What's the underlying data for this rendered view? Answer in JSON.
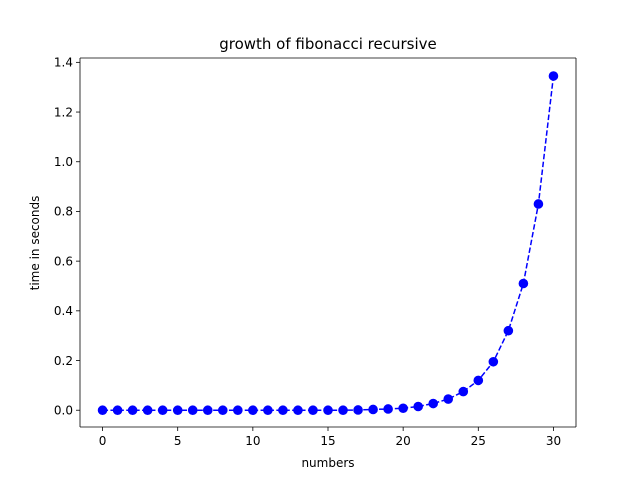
{
  "chart_data": {
    "type": "line",
    "title": "growth of fibonacci recursive",
    "xlabel": "numbers",
    "ylabel": "time in seconds",
    "xlim": [
      -1.5,
      31.5
    ],
    "ylim": [
      -0.0675,
      1.4175
    ],
    "xticks": [
      0,
      5,
      10,
      15,
      20,
      25,
      30
    ],
    "yticks": [
      0.0,
      0.2,
      0.4,
      0.6,
      0.8,
      1.0,
      1.2,
      1.4
    ],
    "xtick_labels": [
      "0",
      "5",
      "10",
      "15",
      "20",
      "25",
      "30"
    ],
    "ytick_labels": [
      "0.0",
      "0.2",
      "0.4",
      "0.6",
      "0.8",
      "1.0",
      "1.2",
      "1.4"
    ],
    "grid": false,
    "series": [
      {
        "color": "#0000ff",
        "line_style": "dashed",
        "marker": "circle",
        "x": [
          0,
          1,
          2,
          3,
          4,
          5,
          6,
          7,
          8,
          9,
          10,
          11,
          12,
          13,
          14,
          15,
          16,
          17,
          18,
          19,
          20,
          21,
          22,
          23,
          24,
          25,
          26,
          27,
          28,
          29,
          30
        ],
        "y": [
          0.0,
          0.0,
          0.0,
          0.0,
          0.0,
          0.0,
          0.0,
          0.0,
          0.0,
          0.0,
          0.0,
          0.0,
          0.0,
          0.0,
          0.0,
          0.0,
          0.0,
          0.001,
          0.003,
          0.005,
          0.008,
          0.015,
          0.027,
          0.045,
          0.075,
          0.12,
          0.195,
          0.32,
          0.51,
          0.83,
          1.345
        ]
      }
    ]
  }
}
